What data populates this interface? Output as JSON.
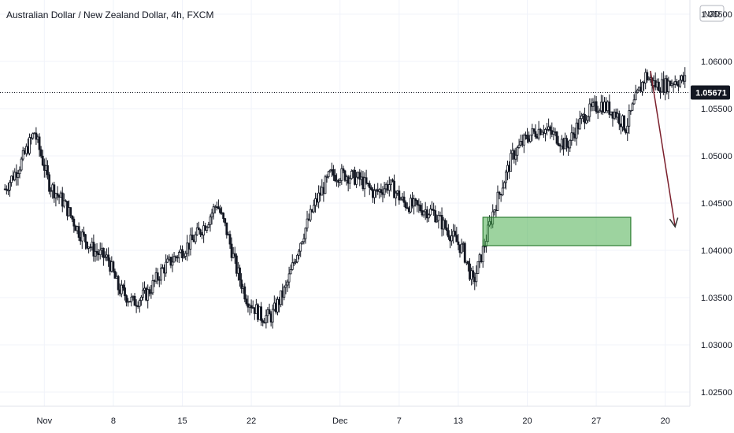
{
  "chart_data": {
    "type": "candlestick",
    "title": "Australian Dollar / New Zealand Dollar, 4h, FXCM",
    "currency": "NZD",
    "current_price": 1.05671,
    "current_price_label": "1.05671",
    "ylim": [
      1.0235,
      1.0665
    ],
    "y_ticks": [
      "1.02500",
      "1.03000",
      "1.03500",
      "1.04000",
      "1.04500",
      "1.05000",
      "1.05500",
      "1.06000",
      "1.06500"
    ],
    "y_tick_values": [
      1.025,
      1.03,
      1.035,
      1.04,
      1.045,
      1.05,
      1.055,
      1.06,
      1.065
    ],
    "x_ticks": [
      "Nov",
      "8",
      "15",
      "22",
      "Dec",
      "7",
      "13",
      "20",
      "27",
      "20"
    ],
    "x_tick_days": [
      1,
      8,
      15,
      22,
      31,
      37,
      43,
      50,
      57,
      64
    ],
    "x_range_days": [
      -3.5,
      66.5
    ],
    "bars_per_day": 6,
    "path_points": [
      [
        -3.0,
        1.0465
      ],
      [
        -1.5,
        1.049
      ],
      [
        0.0,
        1.0525
      ],
      [
        1.5,
        1.047
      ],
      [
        3.0,
        1.045
      ],
      [
        4.5,
        1.042
      ],
      [
        6.0,
        1.04
      ],
      [
        7.5,
        1.039
      ],
      [
        8.5,
        1.036
      ],
      [
        10.0,
        1.0345
      ],
      [
        11.5,
        1.0355
      ],
      [
        13.0,
        1.038
      ],
      [
        14.5,
        1.0395
      ],
      [
        16.0,
        1.041
      ],
      [
        17.5,
        1.043
      ],
      [
        18.5,
        1.045
      ],
      [
        19.5,
        1.042
      ],
      [
        20.5,
        1.038
      ],
      [
        21.5,
        1.035
      ],
      [
        23.0,
        1.033
      ],
      [
        24.0,
        1.033
      ],
      [
        25.5,
        1.036
      ],
      [
        27.0,
        1.041
      ],
      [
        28.5,
        1.045
      ],
      [
        30.0,
        1.048
      ],
      [
        31.5,
        1.048
      ],
      [
        33.0,
        1.0475
      ],
      [
        34.5,
        1.046
      ],
      [
        36.0,
        1.047
      ],
      [
        37.5,
        1.045
      ],
      [
        39.0,
        1.0445
      ],
      [
        40.5,
        1.044
      ],
      [
        42.0,
        1.042
      ],
      [
        43.5,
        1.04
      ],
      [
        44.5,
        1.0365
      ],
      [
        45.5,
        1.04
      ],
      [
        46.5,
        1.044
      ],
      [
        47.5,
        1.047
      ],
      [
        48.5,
        1.05
      ],
      [
        50.0,
        1.052
      ],
      [
        51.5,
        1.053
      ],
      [
        53.0,
        1.052
      ],
      [
        54.0,
        1.051
      ],
      [
        55.0,
        1.053
      ],
      [
        56.0,
        1.0545
      ],
      [
        57.5,
        1.0555
      ],
      [
        59.0,
        1.0545
      ],
      [
        60.0,
        1.053
      ],
      [
        61.0,
        1.056
      ],
      [
        62.0,
        1.0585
      ],
      [
        63.0,
        1.0575
      ],
      [
        64.0,
        1.0575
      ],
      [
        65.0,
        1.058
      ],
      [
        66.0,
        1.058
      ]
    ],
    "demand_zone": {
      "x_start_day": 45.5,
      "x_end_day": 60.5,
      "price_low": 1.0405,
      "price_high": 1.0435,
      "fill": "#4caf50",
      "fill_opacity": 0.55,
      "stroke": "#2e7d32"
    },
    "projection_arrow": {
      "from_day": 62.5,
      "from_price": 1.059,
      "to_day": 65.0,
      "to_price": 1.0425,
      "color": "#7b1f2c"
    },
    "colors": {
      "up": "#131722",
      "down": "#131722",
      "up_body": "#ffffff",
      "down_body": "#131722",
      "grid": "#f0f3fa",
      "price_line": "#131722",
      "price_tag": "#131722",
      "axis_text": "#131722"
    }
  }
}
